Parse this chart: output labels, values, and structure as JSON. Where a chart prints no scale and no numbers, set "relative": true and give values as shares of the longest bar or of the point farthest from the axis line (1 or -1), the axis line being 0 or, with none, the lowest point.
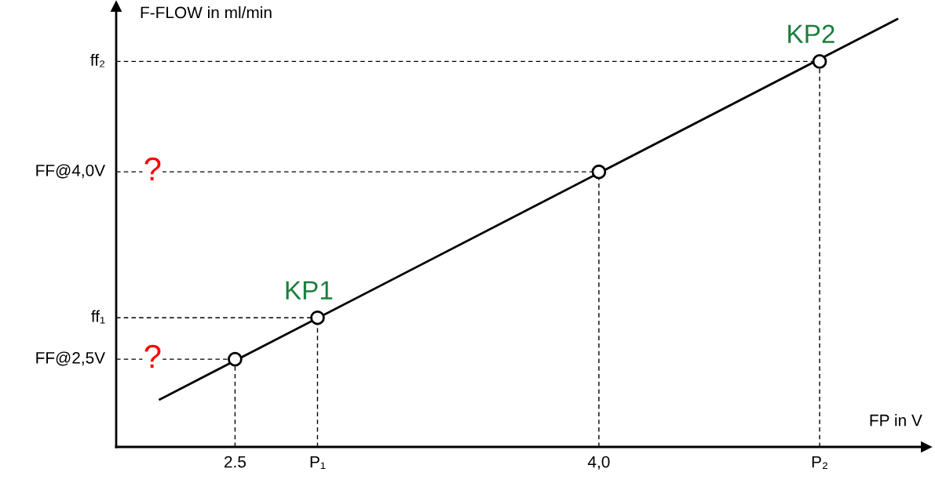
{
  "chart_data": {
    "type": "line",
    "relative": true,
    "xlabel": "FP in V",
    "ylabel": "F-FLOW in ml/min",
    "xlim": [
      2.01,
      5.35
    ],
    "xticks": [
      {
        "value": 2.5,
        "label": "2.5"
      },
      {
        "value": 2.84,
        "label": "P₁"
      },
      {
        "value": 4.0,
        "label": "4,0"
      },
      {
        "value": 4.91,
        "label": "P₂"
      }
    ],
    "series": [
      {
        "color": "#000000",
        "marker": "none",
        "x": [
          2.19,
          5.23
        ],
        "values": [
          0.111,
          1.0
        ]
      },
      {
        "type": "scatter",
        "color": "#000000",
        "marker": "circle",
        "x": [
          2.5,
          2.84,
          4.0,
          4.91
        ],
        "values": [
          0.205,
          0.302,
          0.643,
          0.901
        ]
      }
    ],
    "ref_lines": [
      {
        "axis": "y",
        "value": 0.901,
        "label": "ff₂",
        "line_style": "dashed"
      },
      {
        "axis": "y",
        "value": 0.643,
        "label": "FF@4,0V",
        "line_style": "dashed"
      },
      {
        "axis": "y",
        "value": 0.302,
        "label": "ff₁",
        "line_style": "dashed"
      },
      {
        "axis": "y",
        "value": 0.205,
        "label": "FF@2,5V",
        "line_style": "dashed"
      },
      {
        "axis": "x",
        "value": 2.5,
        "label": null,
        "line_style": "dashed"
      },
      {
        "axis": "x",
        "value": 2.84,
        "label": null,
        "line_style": "dashed"
      },
      {
        "axis": "x",
        "value": 4.0,
        "label": null,
        "line_style": "dashed"
      },
      {
        "axis": "x",
        "value": 4.91,
        "label": null,
        "line_style": "dashed"
      }
    ],
    "annotations": [
      {
        "text": "KP1",
        "x": 2.84,
        "y": 0.302
      },
      {
        "text": "KP2",
        "x": 4.91,
        "y": 0.901
      },
      {
        "text": "?",
        "x": 2.16,
        "y": 0.643
      },
      {
        "text": "?",
        "x": 2.16,
        "y": 0.205
      }
    ],
    "grid": false
  }
}
